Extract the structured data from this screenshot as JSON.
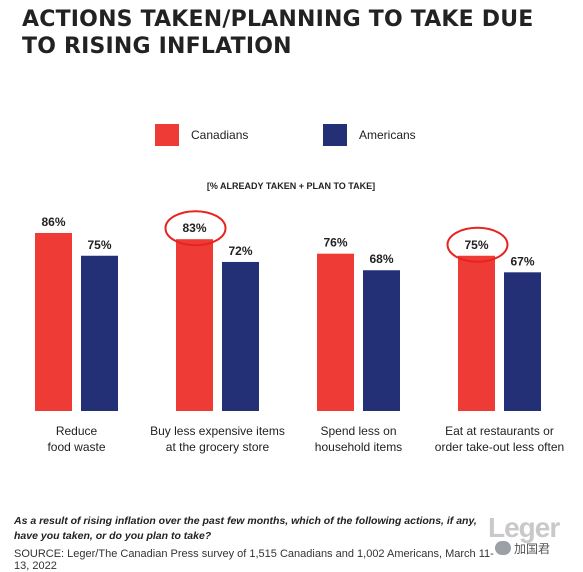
{
  "header": {
    "title_line1": "ACTIONS TAKEN/PLANNING TO TAKE DUE",
    "title_line2": "TO RISING INFLATION"
  },
  "footer": {
    "question": "As a result of rising inflation over the past few months, which of the following actions, if any, have you taken, or do you plan to take?",
    "source": "SOURCE: Leger/The Canadian Press survey of 1,515 Canadians and 1,002 Americans, March 11-13, 2022",
    "logo": "Leger",
    "watermark": "加国君"
  },
  "chart_data": {
    "type": "bar",
    "subtitle": "[% ALREADY TAKEN + PLAN TO TAKE]",
    "categories": [
      [
        "Reduce",
        "food waste"
      ],
      [
        "Buy less expensive items",
        "at the grocery store"
      ],
      [
        "Spend less on",
        "household items"
      ],
      [
        "Eat at restaurants or",
        "order take-out less often"
      ]
    ],
    "series": [
      {
        "name": "Canadians",
        "color": "#ef3b36",
        "values": [
          86,
          83,
          76,
          75
        ],
        "labels": [
          "86%",
          "83%",
          "76%",
          "75%"
        ]
      },
      {
        "name": "Americans",
        "color": "#233075",
        "values": [
          75,
          72,
          68,
          67
        ],
        "labels": [
          "75%",
          "72%",
          "68%",
          "67%"
        ]
      }
    ],
    "highlighted": [
      {
        "series": "Canadians",
        "category_index": 1,
        "shape": "circle",
        "color": "#e8231d"
      },
      {
        "series": "Canadians",
        "category_index": 3,
        "shape": "circle",
        "color": "#e8231d"
      }
    ],
    "legend_position": "top-center",
    "ylim": [
      0,
      100
    ],
    "grid": false
  }
}
